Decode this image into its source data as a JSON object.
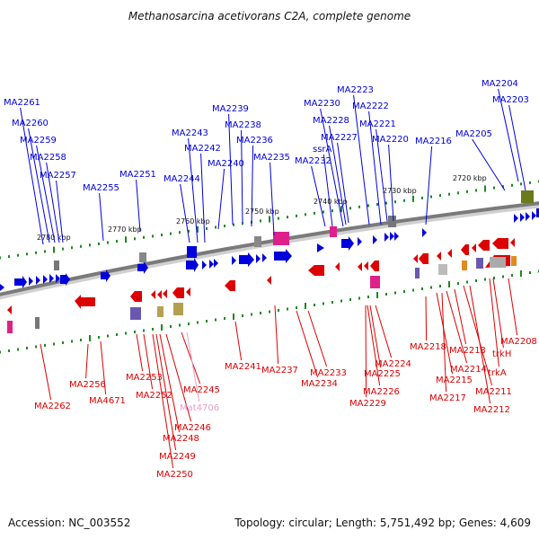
{
  "title": "Methanosarcina acetivorans C2A, complete genome",
  "footer": {
    "accession": "Accession: NC_003552",
    "summary": "Topology: circular; Length: 5,751,492 bp; Genes: 4,609"
  },
  "colors": {
    "forward": "#0000dd",
    "reverse": "#dd0000",
    "pseudo": "#e89ec8",
    "tick": "#1a8a1a",
    "backbone": "#7a7a7a"
  },
  "ticks": [
    "2780 kbp",
    "2770 kbp",
    "2760 kbp",
    "2750 kbp",
    "2740 kbp",
    "2730 kbp",
    "2720 kbp"
  ],
  "top_labels": [
    "MA2261",
    "MA2260",
    "MA2259",
    "MA2258",
    "MA2257",
    "MA2255",
    "MA2251",
    "MA2244",
    "MA2243",
    "MA2242",
    "MA2240",
    "MA2239",
    "MA2238",
    "MA2236",
    "MA2235",
    "MA2232",
    "ssrA",
    "MA2230",
    "MA2228",
    "MA2227",
    "MA2223",
    "MA2222",
    "MA2221",
    "MA2220",
    "MA2216",
    "MA2205",
    "MA2204",
    "MA2203"
  ],
  "bottom_labels": [
    "MA2262",
    "MA2256",
    "MA4671",
    "MA2253",
    "MA2252",
    "MA2245",
    "Mat4706",
    "MA2246",
    "MA2248",
    "MA2249",
    "MA2250",
    "MA2241",
    "MA2237",
    "MA2233",
    "MA2234",
    "MA2229",
    "MA2226",
    "MA2225",
    "MA2224",
    "MA2218",
    "MA2217",
    "MA2215",
    "MA2214",
    "MA2213",
    "MA2211",
    "MA2212",
    "trkA",
    "trkH",
    "MA2208"
  ]
}
